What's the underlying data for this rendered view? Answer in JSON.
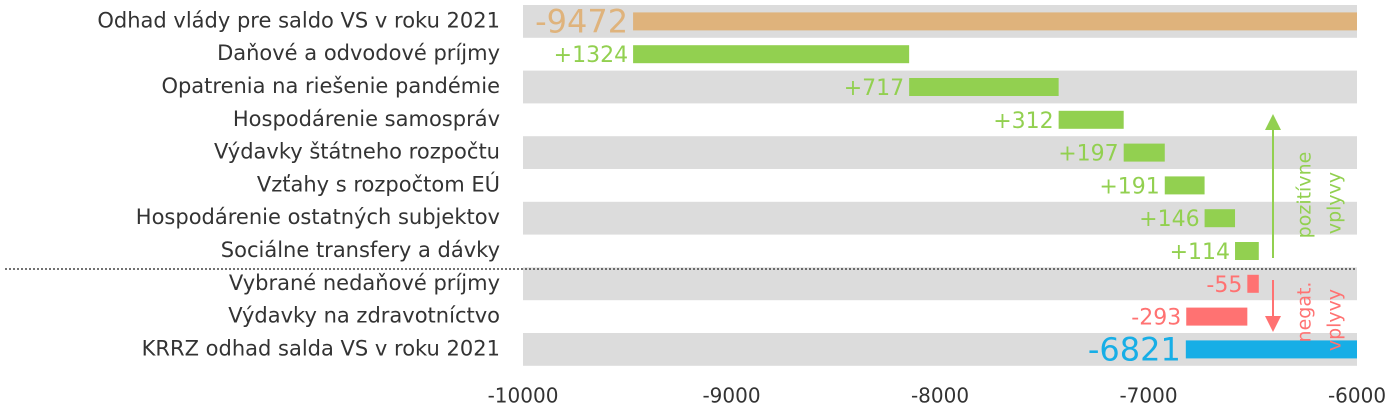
{
  "chart_data": {
    "type": "waterfall",
    "categories": [
      "Odhad vlády pre saldo VS v roku 2021",
      "Daňové a odvodové príjmy",
      "Opatrenia na riešenie pandémie",
      "Hospodárenie samospráv",
      "Výdavky štátneho rozpočtu",
      "Vzťahy s rozpočtom EÚ",
      "Hospodárenie ostatných subjektov",
      "Sociálne transfery a dávky",
      "Vybrané nedaňové príjmy",
      "Výdavky na zdravotníctvo",
      "KRRZ odhad salda VS v roku 2021"
    ],
    "values": [
      -9472,
      1324,
      717,
      312,
      197,
      191,
      146,
      114,
      -55,
      -293,
      -6821
    ],
    "value_labels": [
      "-9472",
      "+1324",
      "+717",
      "+312",
      "+197",
      "+191",
      "+146",
      "+114",
      "-55",
      "-293",
      "-6821"
    ],
    "totals": [
      true,
      false,
      false,
      false,
      false,
      false,
      false,
      false,
      false,
      false,
      true
    ],
    "colors": [
      "#dfb37c",
      "#92d050",
      "#92d050",
      "#92d050",
      "#92d050",
      "#92d050",
      "#92d050",
      "#92d050",
      "#ff7272",
      "#ff7272",
      "#17aee6"
    ],
    "xlim": [
      -10000,
      -6000
    ],
    "xticks": [
      -10000,
      -9000,
      -8000,
      -7000,
      -6000
    ],
    "annotations": [
      {
        "lines": [
          "pozitívne",
          "vplyvy"
        ],
        "color": "#92d050"
      },
      {
        "lines": [
          "negat.",
          "vplyvy"
        ],
        "color": "#ff7272"
      }
    ]
  }
}
